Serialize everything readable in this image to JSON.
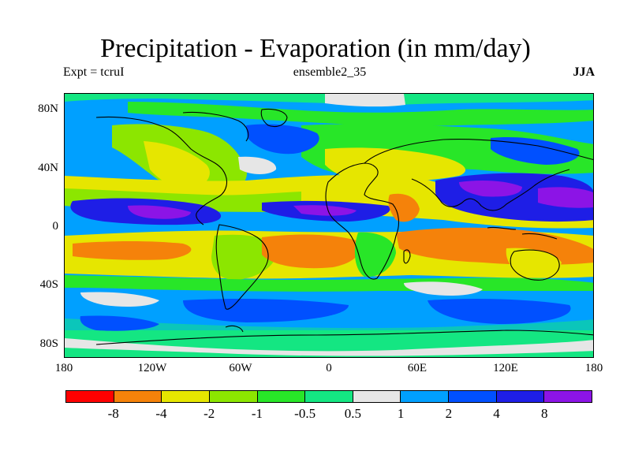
{
  "title": "Precipitation - Evaporation (in mm/day)",
  "subtitle_left": "Expt = tcruI",
  "subtitle_center": "ensemble2_35",
  "subtitle_right": "JJA",
  "y_ticks": [
    "80N",
    "40N",
    "0",
    "40S",
    "80S"
  ],
  "x_ticks": [
    "180",
    "120W",
    "60W",
    "0",
    "60E",
    "120E",
    "180"
  ],
  "colorbar": {
    "colors": [
      "#ff0000",
      "#f5820a",
      "#e6e600",
      "#8ce600",
      "#28e628",
      "#14e682",
      "#e6e6e6",
      "#00a0ff",
      "#0050ff",
      "#1e1ee6",
      "#8c14e6"
    ],
    "labels": [
      "-8",
      "-4",
      "-2",
      "-1",
      "-0.5",
      "0.5",
      "1",
      "2",
      "4",
      "8"
    ]
  }
}
